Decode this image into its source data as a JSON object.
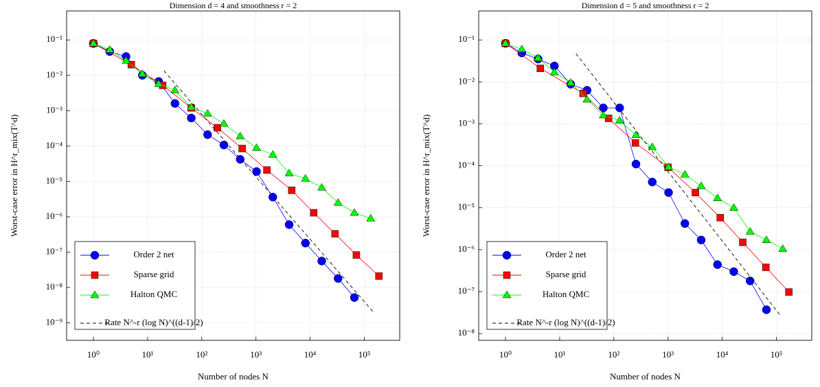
{
  "chart_data": [
    {
      "type": "line",
      "log_x": true,
      "log_y": true,
      "grid": true,
      "legend": "lower left",
      "title": "Dimension d = 4 and smoothness r = 2",
      "x_label": "Number of nodes N",
      "y_label": "Worst-case error in H^r_mix(T^d)",
      "xlim": [
        0.32,
        450000
      ],
      "ylim": [
        3.2e-10,
        0.66
      ],
      "xticks": [
        {
          "value": 1,
          "label": "10⁰"
        },
        {
          "value": 10,
          "label": "10¹"
        },
        {
          "value": 100,
          "label": "10²"
        },
        {
          "value": 1000,
          "label": "10³"
        },
        {
          "value": 10000,
          "label": "10⁴"
        },
        {
          "value": 100000,
          "label": "10⁵"
        }
      ],
      "yticks": [
        {
          "value": 1e-09,
          "label": "10⁻⁹"
        },
        {
          "value": 1e-08,
          "label": "10⁻⁸"
        },
        {
          "value": 1e-07,
          "label": "10⁻⁷"
        },
        {
          "value": 1e-06,
          "label": "10⁻⁶"
        },
        {
          "value": 1e-05,
          "label": "10⁻⁵"
        },
        {
          "value": 0.0001,
          "label": "10⁻⁴"
        },
        {
          "value": 0.001,
          "label": "10⁻³"
        },
        {
          "value": 0.01,
          "label": "10⁻²"
        },
        {
          "value": 0.1,
          "label": "10⁻¹"
        }
      ],
      "series": [
        {
          "name": "Order 2 net",
          "color": "#0000ff",
          "marker": "circle",
          "x": [
            1,
            2,
            4,
            8,
            16,
            32,
            64,
            128,
            256,
            512,
            1024,
            2048,
            4096,
            8192,
            16384,
            32768,
            65536
          ],
          "values": [
            0.08,
            0.047,
            0.034,
            0.01,
            0.0067,
            0.0016,
            0.00062,
            0.00021,
            0.000107,
            4.2e-05,
            1.9e-05,
            3.6e-06,
            6e-07,
            1.8e-07,
            5.6e-08,
            1.8e-08,
            5.2e-09
          ]
        },
        {
          "name": "Sparse grid",
          "color": "#ff0000",
          "marker": "square",
          "x": [
            1,
            5,
            19,
            64,
            194,
            556,
            1592,
            4570,
            11650,
            28800,
            71400,
            186000
          ],
          "values": [
            0.08,
            0.02,
            0.0052,
            0.0012,
            0.00033,
            8.5e-05,
            2.1e-05,
            5.6e-06,
            1.3e-06,
            3.3e-07,
            8.3e-08,
            2.1e-08
          ]
        },
        {
          "name": "Halton QMC",
          "color": "#00ff00",
          "marker": "triangle",
          "x": [
            1,
            2,
            4,
            8,
            16,
            32,
            64,
            128,
            256,
            512,
            1024,
            2048,
            4096,
            8192,
            16384,
            32768,
            65536,
            131072
          ],
          "values": [
            0.08,
            0.053,
            0.026,
            0.011,
            0.0057,
            0.0038,
            0.00125,
            0.00083,
            0.00043,
            0.00019,
            8.9e-05,
            5.7e-05,
            1.7e-05,
            1.2e-05,
            6.7e-06,
            2.5e-06,
            1.3e-06,
            9e-07
          ]
        },
        {
          "name": "Rate N^-r (log N)^((d-1)/2)",
          "color": "#000000",
          "dashed": true,
          "x": [
            20,
            152000
          ],
          "values": [
            0.0134,
            1.9e-09
          ]
        }
      ]
    },
    {
      "type": "line",
      "log_x": true,
      "log_y": true,
      "grid": true,
      "legend": "lower left",
      "title": "Dimension d = 5 and smoothness r = 2",
      "x_label": "Number of nodes N",
      "y_label": "Worst-case error in H^r_mix(T^d)",
      "xlim": [
        0.32,
        450000
      ],
      "ylim": [
        6.9e-09,
        0.49
      ],
      "xticks": [
        {
          "value": 1,
          "label": "10⁰"
        },
        {
          "value": 10,
          "label": "10¹"
        },
        {
          "value": 100,
          "label": "10²"
        },
        {
          "value": 1000,
          "label": "10³"
        },
        {
          "value": 10000,
          "label": "10⁴"
        },
        {
          "value": 100000,
          "label": "10⁵"
        }
      ],
      "yticks": [
        {
          "value": 1e-08,
          "label": "10⁻⁸"
        },
        {
          "value": 1e-07,
          "label": "10⁻⁷"
        },
        {
          "value": 1e-06,
          "label": "10⁻⁶"
        },
        {
          "value": 1e-05,
          "label": "10⁻⁵"
        },
        {
          "value": 0.0001,
          "label": "10⁻⁴"
        },
        {
          "value": 0.001,
          "label": "10⁻³"
        },
        {
          "value": 0.01,
          "label": "10⁻²"
        },
        {
          "value": 0.1,
          "label": "10⁻¹"
        }
      ],
      "series": [
        {
          "name": "Order 2 net",
          "color": "#0000ff",
          "marker": "circle",
          "x": [
            1,
            2,
            4,
            8,
            16,
            32,
            64,
            128,
            256,
            512,
            1024,
            2048,
            4096,
            8192,
            16384,
            32768,
            65536
          ],
          "values": [
            0.083,
            0.049,
            0.035,
            0.024,
            0.0088,
            0.0063,
            0.0024,
            0.0024,
            0.00011,
            4.1e-05,
            2.3e-05,
            4.2e-06,
            1.7e-06,
            4.4e-07,
            3e-07,
            1.8e-07,
            3.7e-08
          ]
        },
        {
          "name": "Sparse grid",
          "color": "#ff0000",
          "marker": "square",
          "x": [
            1,
            4.4,
            27,
            80,
            250,
            1000,
            3200,
            9200,
            24000,
            64000,
            170000
          ],
          "values": [
            0.083,
            0.021,
            0.0053,
            0.00135,
            0.00035,
            9.2e-05,
            2.3e-05,
            5.8e-06,
            1.5e-06,
            3.8e-07,
            9.8e-08
          ]
        },
        {
          "name": "Halton QMC",
          "color": "#00ff00",
          "marker": "triangle",
          "x": [
            1,
            2,
            4,
            8,
            16,
            32,
            64,
            128,
            256,
            512,
            1024,
            2048,
            4096,
            8192,
            16384,
            32768,
            65536,
            131072
          ],
          "values": [
            0.083,
            0.06,
            0.037,
            0.017,
            0.0095,
            0.0038,
            0.0016,
            0.0012,
            0.00054,
            0.00028,
            9.3e-05,
            6.2e-05,
            3.3e-05,
            1.7e-05,
            1e-05,
            2.7e-06,
            1.7e-06,
            1.05e-06
          ]
        },
        {
          "name": "Rate N^-r (log N)^((d-1)/2)",
          "color": "#000000",
          "dashed": true,
          "x": [
            20,
            116000
          ],
          "values": [
            0.047,
            2.8e-08
          ]
        }
      ]
    }
  ]
}
